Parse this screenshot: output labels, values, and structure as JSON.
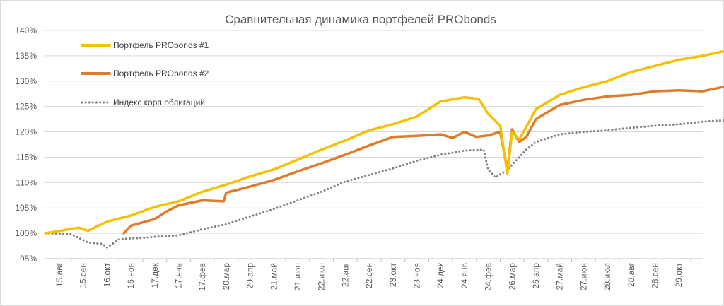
{
  "chart_data": {
    "type": "line",
    "title": "Сравнительная динамика портфелей PRObonds",
    "xlabel": "",
    "ylabel": "",
    "ylim": [
      95,
      140
    ],
    "y_ticks": [
      "95%",
      "100%",
      "105%",
      "110%",
      "115%",
      "120%",
      "125%",
      "130%",
      "135%",
      "140%"
    ],
    "grid": "horizontal",
    "legend_position": "top-left",
    "categories": [
      "15.авг",
      "15.сен",
      "16.окт",
      "16.ноя",
      "17.дек",
      "17.янв",
      "17.фев",
      "20.мар",
      "20.апр",
      "21.май",
      "21.июн",
      "22.июл",
      "22.авг",
      "22.сен",
      "23.окт",
      "23.ноя",
      "24.дек",
      "24.янв",
      "24.фев",
      "26.мар",
      "26.апр",
      "27.май",
      "27.июн",
      "28.июл",
      "28.авг",
      "28.сен",
      "29.окт"
    ],
    "series": [
      {
        "name": "Портфель PRObonds #1",
        "color": "#F5C000",
        "style": "solid",
        "x": [
          0,
          0.8,
          1.2,
          2,
          3,
          4,
          5,
          6,
          7,
          8,
          9,
          10,
          11,
          12,
          13,
          14,
          15,
          16,
          17,
          17.6,
          18,
          18.5,
          18.8,
          19.0,
          19.3,
          19.6,
          20,
          21,
          22,
          23,
          24,
          25,
          26,
          27,
          28,
          28.8
        ],
        "values": [
          100,
          101.1,
          100.5,
          102.3,
          103.5,
          105.2,
          106.3,
          108.2,
          109.6,
          111.2,
          112.6,
          114.5,
          116.5,
          118.3,
          120.3,
          121.5,
          123.0,
          126.0,
          126.8,
          126.5,
          123.5,
          121.2,
          111.8,
          120.0,
          118.5,
          121.0,
          124.5,
          127.3,
          128.8,
          130.0,
          131.8,
          133.0,
          134.2,
          135.0,
          136.0,
          137.0
        ]
      },
      {
        "name": "Портфель PRObonds #2",
        "color": "#E07B2A",
        "style": "solid",
        "x": [
          2.7,
          3,
          4,
          4.5,
          5,
          6,
          6.9,
          7,
          8,
          9,
          10,
          11,
          12,
          13,
          14,
          15,
          16,
          16.5,
          17,
          17.5,
          18,
          18.5,
          18.8,
          19.0,
          19.3,
          19.6,
          20,
          21,
          22,
          23,
          24,
          25,
          26,
          27,
          28,
          28.8
        ],
        "values": [
          100.0,
          101.5,
          102.8,
          104.3,
          105.5,
          106.5,
          106.3,
          108.0,
          109.2,
          110.5,
          112.2,
          113.8,
          115.5,
          117.3,
          119.0,
          119.2,
          119.5,
          118.8,
          120.0,
          119.0,
          119.3,
          120.0,
          112.5,
          120.5,
          118.0,
          119.0,
          122.5,
          125.3,
          126.3,
          127.0,
          127.3,
          128.0,
          128.2,
          128.0,
          129.0,
          130.2
        ]
      },
      {
        "name": "Индекс корп.облигаций",
        "color": "#7F7F7F",
        "style": "dotted",
        "x": [
          0,
          0.5,
          1.2,
          1.8,
          2,
          2.5,
          3,
          3.5,
          4,
          5,
          6,
          7,
          8,
          9,
          10,
          11,
          12,
          13,
          14,
          15,
          16,
          17,
          17.8,
          18,
          18.3,
          18.8,
          19.2,
          19.6,
          20,
          21,
          22,
          23,
          24,
          25,
          26,
          27,
          28,
          28.8
        ],
        "values": [
          100,
          99.8,
          98.2,
          97.9,
          97.2,
          98.8,
          99.0,
          99.1,
          99.3,
          99.6,
          100.8,
          101.8,
          103.3,
          104.8,
          106.5,
          108.2,
          110.2,
          111.5,
          112.8,
          114.3,
          115.5,
          116.3,
          116.5,
          112.5,
          111.0,
          112.5,
          114.5,
          116.5,
          118.0,
          119.5,
          120.0,
          120.3,
          120.8,
          121.2,
          121.5,
          122.0,
          122.3,
          123.0
        ]
      }
    ]
  }
}
